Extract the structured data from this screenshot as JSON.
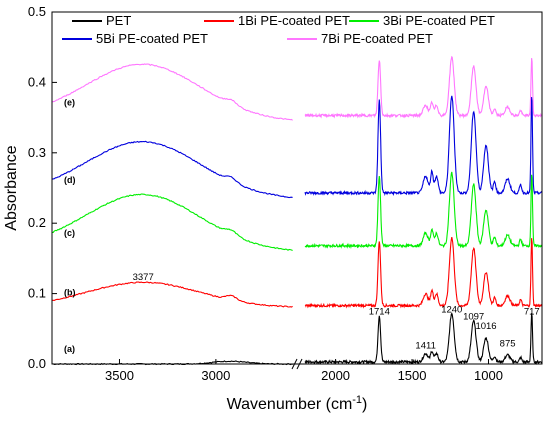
{
  "chart_data": {
    "type": "line",
    "xlabel": "Wavenumber (cm",
    "xlabel_sup": "-1",
    "xlabel_close": ")",
    "ylabel": "Absorbance",
    "ylim": [
      0,
      0.5
    ],
    "x_reversed": true,
    "x_segments": [
      [
        3850,
        2600
      ],
      [
        2200,
        650
      ]
    ],
    "x_ticks": [
      3500,
      3000,
      2000,
      1500,
      1000
    ],
    "y_ticks": [
      "0.0",
      "0.1",
      "0.2",
      "0.3",
      "0.4",
      "0.5"
    ],
    "grid": false,
    "legend_position": "top",
    "series": [
      {
        "name": "PET",
        "color": "#000000",
        "offset": 0.0,
        "left_profile": "flat",
        "right_scale": 1.0
      },
      {
        "name": "1Bi PE-coated PET",
        "color": "#ff0000",
        "offset": 0.08,
        "left_profile": "hump_small",
        "right_scale": 1.4
      },
      {
        "name": "3Bi PE-coated PET",
        "color": "#00ee00",
        "offset": 0.165,
        "left_profile": "hump_large",
        "right_scale": 1.5
      },
      {
        "name": "5Bi PE-coated PET",
        "color": "#0000dd",
        "offset": 0.24,
        "left_profile": "hump_large",
        "right_scale": 2.0
      },
      {
        "name": "7Bi PE-coated PET",
        "color": "#ff77ff",
        "offset": 0.35,
        "left_profile": "hump_large",
        "right_scale": 1.2
      }
    ],
    "curve_labels": [
      {
        "text": "(a)",
        "series": 0
      },
      {
        "text": "(b)",
        "series": 1
      },
      {
        "text": "(c)",
        "series": 2
      },
      {
        "text": "(d)",
        "series": 3
      },
      {
        "text": "(e)",
        "series": 4
      }
    ],
    "peaks": [
      {
        "x": 1714,
        "height": 0.066
      },
      {
        "x": 1411,
        "height": 0.012
      },
      {
        "x": 1240,
        "height": 0.069
      },
      {
        "x": 1097,
        "height": 0.058
      },
      {
        "x": 1016,
        "height": 0.034
      },
      {
        "x": 875,
        "height": 0.01
      },
      {
        "x": 717,
        "height": 0.069
      }
    ],
    "annotations": [
      {
        "text": "3377",
        "x": 3377,
        "y": 0.119
      },
      {
        "text": "1714",
        "x": 1714,
        "y": 0.07
      },
      {
        "text": "1411",
        "x": 1411,
        "y": 0.022
      },
      {
        "text": "1240",
        "x": 1240,
        "y": 0.073
      },
      {
        "text": "1097",
        "x": 1097,
        "y": 0.063
      },
      {
        "text": "1016",
        "x": 1016,
        "y": 0.05
      },
      {
        "text": "875",
        "x": 875,
        "y": 0.025
      },
      {
        "text": "717",
        "x": 717,
        "y": 0.07
      }
    ]
  }
}
